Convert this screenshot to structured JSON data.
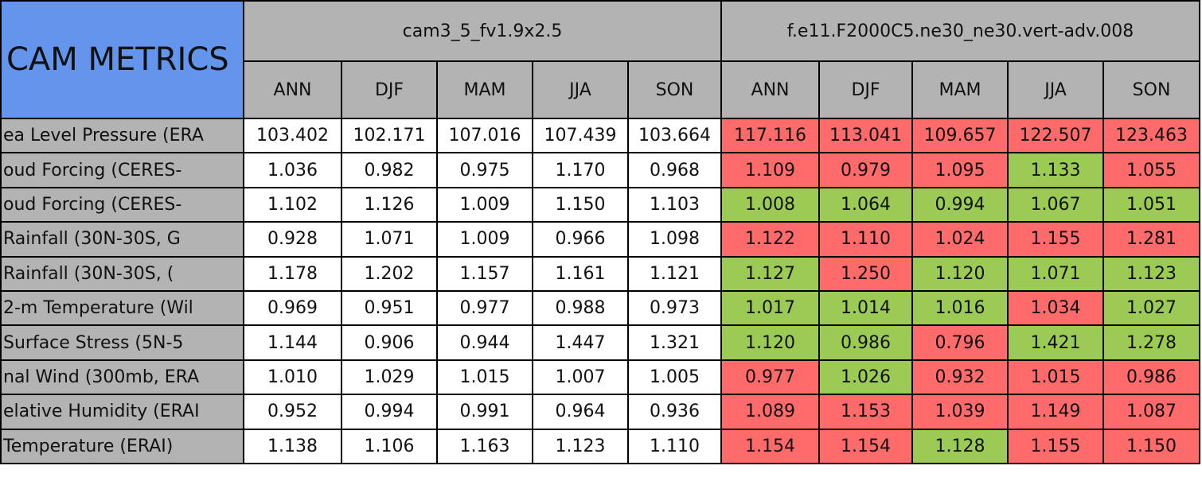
{
  "header": {
    "title": "CAM METRICS",
    "groups": [
      "cam3_5_fv1.9x2.5",
      "f.e11.F2000C5.ne30_ne30.vert-adv.008"
    ],
    "seasons": [
      "ANN",
      "DJF",
      "MAM",
      "JJA",
      "SON",
      "ANN",
      "DJF",
      "MAM",
      "JJA",
      "SON"
    ]
  },
  "colors": {
    "title": "#6495ed",
    "header": "#b3b3b3",
    "label": "#b3b3b3",
    "plain": "#ffffff",
    "worse": "#ff6a6a",
    "better": "#9bcb55"
  },
  "table": {
    "rows": [
      {
        "label": "ea Level Pressure (ERA",
        "cells": [
          "103.402",
          "102.171",
          "107.016",
          "107.439",
          "103.664",
          "117.116",
          "113.041",
          "109.657",
          "122.507",
          "123.463"
        ],
        "fills": [
          "plain",
          "plain",
          "plain",
          "plain",
          "plain",
          "worse",
          "worse",
          "worse",
          "worse",
          "worse"
        ]
      },
      {
        "label": "oud Forcing (CERES-",
        "cells": [
          "1.036",
          "0.982",
          "0.975",
          "1.170",
          "0.968",
          "1.109",
          "0.979",
          "1.095",
          "1.133",
          "1.055"
        ],
        "fills": [
          "plain",
          "plain",
          "plain",
          "plain",
          "plain",
          "worse",
          "worse",
          "worse",
          "better",
          "worse"
        ]
      },
      {
        "label": "oud Forcing (CERES-",
        "cells": [
          "1.102",
          "1.126",
          "1.009",
          "1.150",
          "1.103",
          "1.008",
          "1.064",
          "0.994",
          "1.067",
          "1.051"
        ],
        "fills": [
          "plain",
          "plain",
          "plain",
          "plain",
          "plain",
          "better",
          "better",
          "better",
          "better",
          "better"
        ]
      },
      {
        "label": "Rainfall (30N-30S, G",
        "cells": [
          "0.928",
          "1.071",
          "1.009",
          "0.966",
          "1.098",
          "1.122",
          "1.110",
          "1.024",
          "1.155",
          "1.281"
        ],
        "fills": [
          "plain",
          "plain",
          "plain",
          "plain",
          "plain",
          "worse",
          "worse",
          "worse",
          "worse",
          "worse"
        ]
      },
      {
        "label": "Rainfall (30N-30S, (",
        "cells": [
          "1.178",
          "1.202",
          "1.157",
          "1.161",
          "1.121",
          "1.127",
          "1.250",
          "1.120",
          "1.071",
          "1.123"
        ],
        "fills": [
          "plain",
          "plain",
          "plain",
          "plain",
          "plain",
          "better",
          "worse",
          "better",
          "better",
          "better"
        ]
      },
      {
        "label": "2-m Temperature (Wil",
        "cells": [
          "0.969",
          "0.951",
          "0.977",
          "0.988",
          "0.973",
          "1.017",
          "1.014",
          "1.016",
          "1.034",
          "1.027"
        ],
        "fills": [
          "plain",
          "plain",
          "plain",
          "plain",
          "plain",
          "better",
          "better",
          "better",
          "worse",
          "better"
        ]
      },
      {
        "label": "Surface Stress (5N-5",
        "cells": [
          "1.144",
          "0.906",
          "0.944",
          "1.447",
          "1.321",
          "1.120",
          "0.986",
          "0.796",
          "1.421",
          "1.278"
        ],
        "fills": [
          "plain",
          "plain",
          "plain",
          "plain",
          "plain",
          "better",
          "better",
          "worse",
          "better",
          "better"
        ]
      },
      {
        "label": "nal Wind (300mb, ERA",
        "cells": [
          "1.010",
          "1.029",
          "1.015",
          "1.007",
          "1.005",
          "0.977",
          "1.026",
          "0.932",
          "1.015",
          "0.986"
        ],
        "fills": [
          "plain",
          "plain",
          "plain",
          "plain",
          "plain",
          "worse",
          "better",
          "worse",
          "worse",
          "worse"
        ]
      },
      {
        "label": "elative Humidity (ERAI",
        "cells": [
          "0.952",
          "0.994",
          "0.991",
          "0.964",
          "0.936",
          "1.089",
          "1.153",
          "1.039",
          "1.149",
          "1.087"
        ],
        "fills": [
          "plain",
          "plain",
          "plain",
          "plain",
          "plain",
          "worse",
          "worse",
          "worse",
          "worse",
          "worse"
        ]
      },
      {
        "label": "Temperature (ERAI)",
        "cells": [
          "1.138",
          "1.106",
          "1.163",
          "1.123",
          "1.110",
          "1.154",
          "1.154",
          "1.128",
          "1.155",
          "1.150"
        ],
        "fills": [
          "plain",
          "plain",
          "plain",
          "plain",
          "plain",
          "worse",
          "worse",
          "better",
          "worse",
          "worse"
        ]
      }
    ]
  }
}
